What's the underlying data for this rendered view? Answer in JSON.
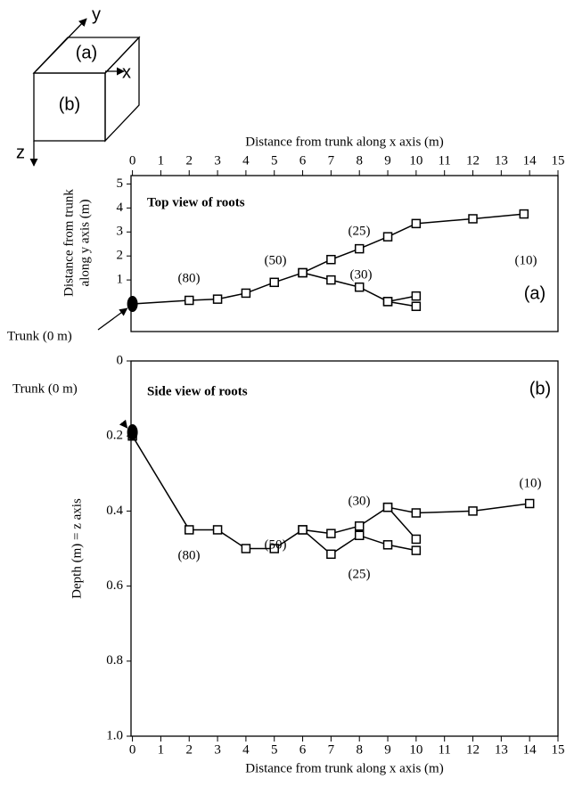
{
  "diagram": {
    "axis_y": "y",
    "axis_x": "x",
    "axis_z": "z",
    "face_top": "(a)",
    "face_front": "(b)"
  },
  "chart_data": [
    {
      "type": "line",
      "xlabel": "Distance from trunk along x axis (m)",
      "ylabel": [
        "Distance from trunk",
        "along y axis (m)"
      ],
      "xaxis_position": "top",
      "invert_y": false,
      "color": "#000000",
      "xlim": [
        -0.05,
        15
      ],
      "xticks": [
        0,
        1,
        2,
        3,
        4,
        5,
        6,
        7,
        8,
        9,
        10,
        11,
        12,
        13,
        14,
        15
      ],
      "ylim": [
        -1.15,
        5.35
      ],
      "yticks": [
        1,
        2,
        3,
        4,
        5
      ],
      "trunk": {
        "x": 0,
        "y": 0,
        "label": "Trunk (0 m)"
      },
      "series": [
        {
          "x": [
            0,
            2,
            3,
            4,
            5,
            6,
            7,
            8,
            9,
            10,
            12,
            13.8
          ],
          "values": [
            0,
            0.15,
            0.2,
            0.45,
            0.9,
            1.3,
            1.85,
            2.3,
            2.8,
            3.35,
            3.55,
            3.75
          ]
        },
        {
          "x": [
            6,
            7,
            8,
            9,
            10
          ],
          "values": [
            1.3,
            1.0,
            0.7,
            0.1,
            0.33
          ]
        },
        {
          "x": [
            9,
            10
          ],
          "values": [
            0.1,
            -0.1
          ]
        }
      ],
      "annotations": [
        "Top view of roots",
        "(a)",
        "(80)",
        "(50)",
        "(25)",
        "(30)",
        "(10)"
      ]
    },
    {
      "type": "line",
      "xlabel": "Distance from trunk along x axis (m)",
      "ylabel": [
        "Depth (m) = z axis"
      ],
      "xaxis_position": "bottom",
      "invert_y": true,
      "color": "#000000",
      "xlim": [
        -0.05,
        15
      ],
      "xticks": [
        0,
        1,
        2,
        3,
        4,
        5,
        6,
        7,
        8,
        9,
        10,
        11,
        12,
        13,
        14,
        15
      ],
      "ylim": [
        0,
        1
      ],
      "yticks": [
        0,
        0.2,
        0.4,
        0.6,
        0.8,
        {
          "value": 1,
          "label": "1.0"
        }
      ],
      "trunk": {
        "x": 0,
        "y": 0.19,
        "label": "Trunk (0 m)"
      },
      "series": [
        {
          "x": [
            0,
            2,
            3,
            4,
            5,
            6,
            7,
            8,
            9,
            10,
            12,
            14
          ],
          "values": [
            0.2,
            0.45,
            0.45,
            0.5,
            0.5,
            0.45,
            0.46,
            0.44,
            0.39,
            0.405,
            0.4,
            0.38
          ]
        },
        {
          "x": [
            6,
            7,
            8,
            9,
            10
          ],
          "values": [
            0.45,
            0.515,
            0.465,
            0.49,
            0.505
          ]
        },
        {
          "x": [
            9,
            10
          ],
          "values": [
            0.39,
            0.475
          ]
        }
      ],
      "annotations": [
        "Side view of roots",
        "(b)",
        "(30)",
        "(10)",
        "(50)",
        "(80)",
        "(25)"
      ]
    }
  ]
}
